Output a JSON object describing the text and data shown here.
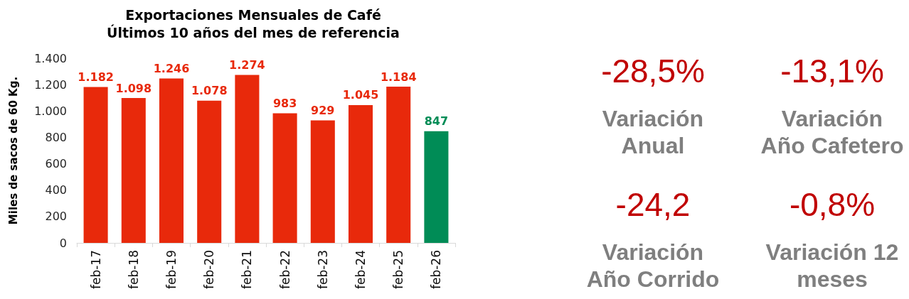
{
  "chart_data": [
    {
      "type": "bar",
      "title": "Exportaciones Mensuales de Café",
      "subtitle": "Últimos 10 años del mes de referencia",
      "ylabel": "Miles de sacos de 60 Kg.",
      "categories": [
        "feb-17",
        "feb-18",
        "feb-19",
        "feb-20",
        "feb-21",
        "feb-22",
        "feb-23",
        "feb-24",
        "feb-25",
        "feb-26"
      ],
      "values": [
        1182,
        1098,
        1246,
        1078,
        1274,
        983,
        929,
        1045,
        1184,
        847
      ],
      "colors": [
        "#e8290b",
        "#e8290b",
        "#e8290b",
        "#e8290b",
        "#e8290b",
        "#e8290b",
        "#e8290b",
        "#e8290b",
        "#e8290b",
        "#008c56"
      ],
      "value_labels": [
        "1.182",
        "1.098",
        "1.246",
        "1.078",
        "1.274",
        "983",
        "929",
        "1.045",
        "1.184",
        "847"
      ],
      "ylim": [
        0,
        1400
      ],
      "yticks": [
        0,
        200,
        400,
        600,
        800,
        {
          "value": 1000,
          "label": "1.000"
        },
        {
          "value": 1200,
          "label": "1.200"
        },
        {
          "value": 1400,
          "label": "1.400"
        }
      ],
      "grid": false
    },
    {
      "type": "other",
      "annotations": [
        "-28,5%",
        "Variación Anual",
        "-13,1%",
        "Variación Año Cafetero",
        "-24,2",
        "Variación Año Corrido",
        "-0,8%",
        "Variación 12 meses"
      ]
    }
  ]
}
